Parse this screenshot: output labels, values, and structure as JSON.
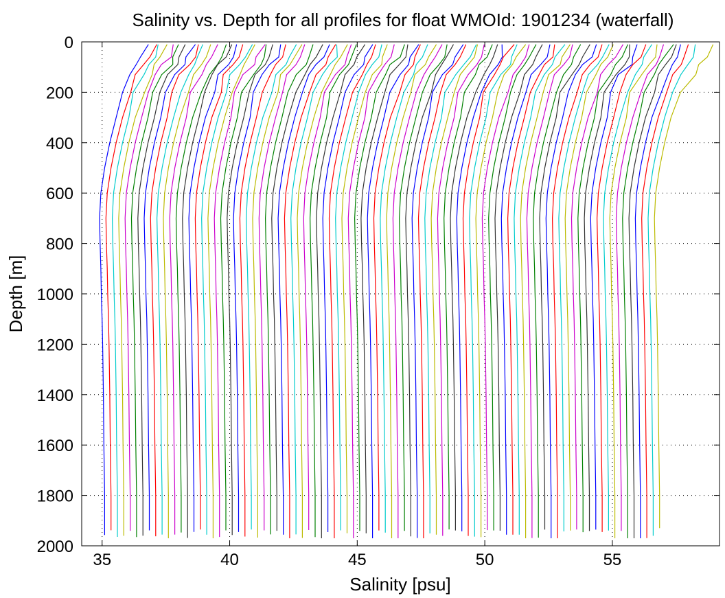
{
  "chart_data": {
    "type": "line",
    "title": "Salinity vs. Depth for all profiles for float WMOId: 1901234 (waterfall)",
    "xlabel": "Salinity [psu]",
    "ylabel": "Depth [m]",
    "xlim": [
      34.2,
      59.2
    ],
    "ylim": [
      0,
      2000
    ],
    "y_reversed": true,
    "grid": "dotted",
    "legend": "none",
    "x_ticks": [
      35,
      40,
      45,
      50,
      55
    ],
    "y_ticks": [
      0,
      200,
      400,
      600,
      800,
      1000,
      1200,
      1400,
      1600,
      1800,
      2000
    ],
    "x_tick_labels": [
      "35",
      "40",
      "45",
      "50",
      "55"
    ],
    "y_tick_labels": [
      "0",
      "200",
      "400",
      "600",
      "800",
      "1000",
      "1200",
      "1400",
      "1600",
      "1800",
      "2000"
    ],
    "profile_count": 88,
    "waterfall_offset_psu": 0.25,
    "series_colors": [
      "#0000ff",
      "#ff0000",
      "#00cccc",
      "#bbbb00",
      "#cc00cc",
      "#008000",
      "#333333"
    ],
    "base_profile": {
      "depth": [
        10,
        60,
        90,
        130,
        200,
        300,
        400,
        500,
        600,
        700,
        800,
        900,
        1000,
        1100,
        1200,
        1400,
        1600,
        1800,
        1970
      ],
      "salinity": [
        36.8,
        36.6,
        36.4,
        36.1,
        35.8,
        35.55,
        35.3,
        35.1,
        34.95,
        34.9,
        34.92,
        34.95,
        34.97,
        35.0,
        35.02,
        35.05,
        35.07,
        35.1,
        35.1
      ]
    }
  }
}
